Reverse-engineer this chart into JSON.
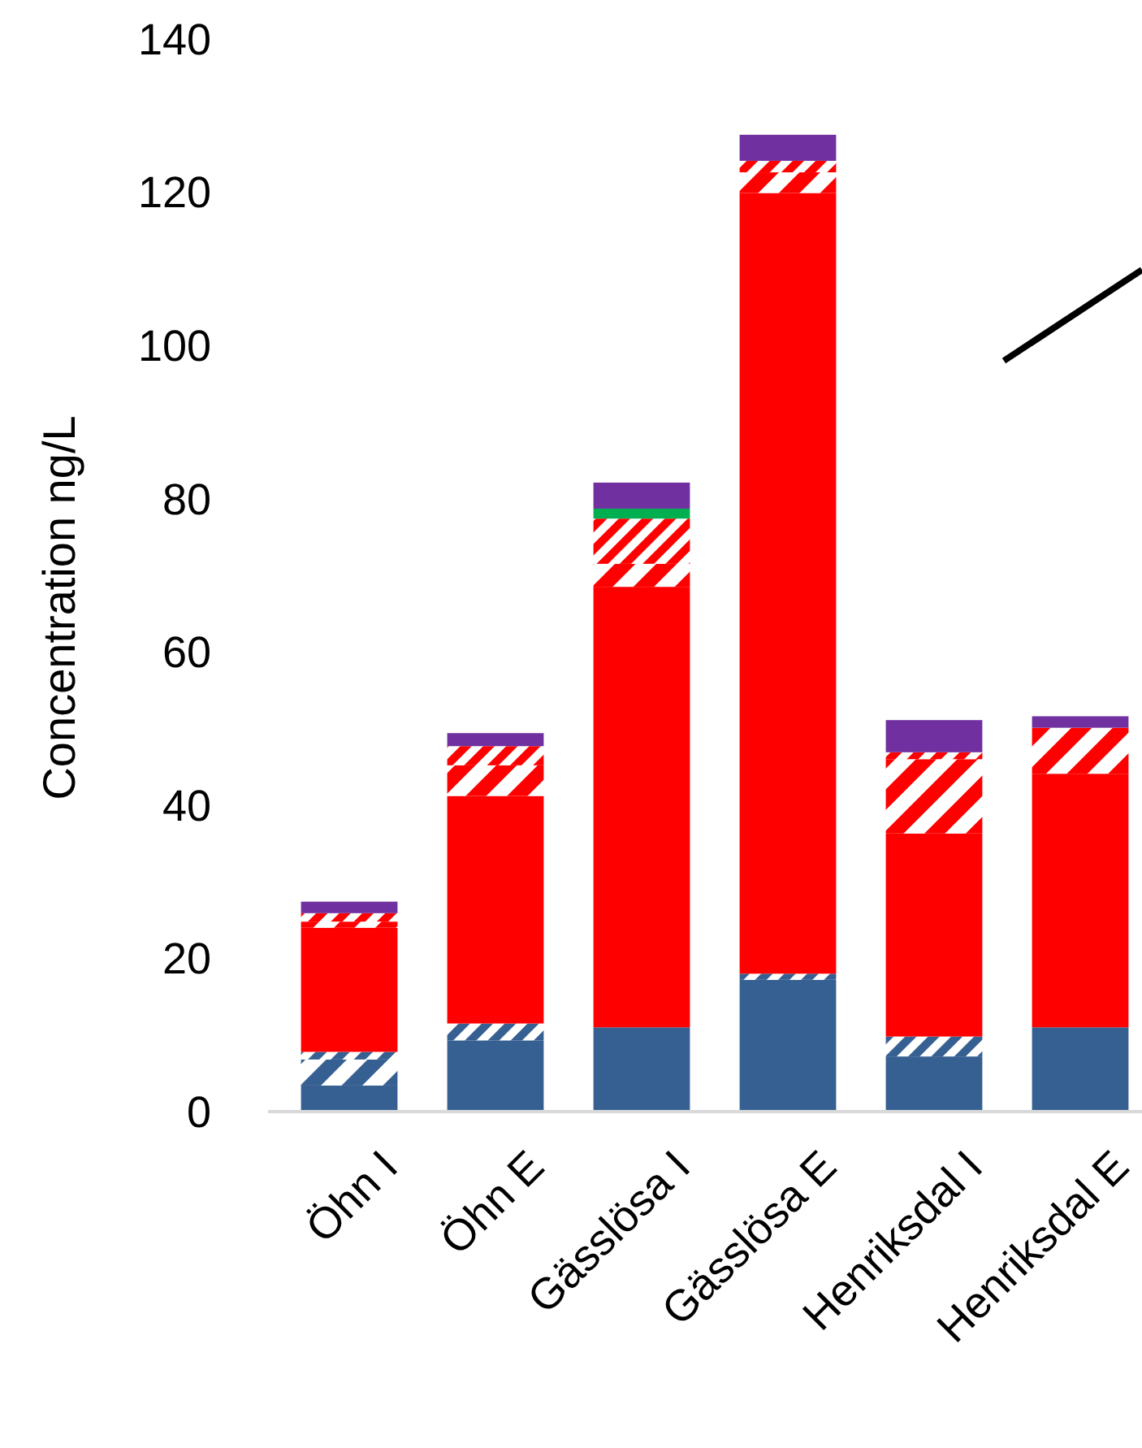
{
  "chart_data": {
    "type": "bar",
    "stacked": true,
    "ylabel": "Concentration ng/L",
    "categories": [
      "Öhn I",
      "Öhn E",
      "Gässlösa I",
      "Gässlösa E",
      "Henriksdal I",
      "Henriksdal E"
    ],
    "ylim": [
      0,
      140
    ],
    "yticks": [
      0,
      20,
      40,
      60,
      80,
      100,
      120,
      140
    ],
    "grid": false,
    "series": [
      {
        "color": "#376092",
        "values": [
          3.4,
          9.3,
          11.0,
          17.2,
          7.2,
          11.0
        ]
      },
      {
        "color": "#376092",
        "values": [
          3.4,
          null,
          null,
          null,
          null,
          null
        ]
      },
      {
        "color": "#376092",
        "values": [
          1.0,
          2.2,
          null,
          0.8,
          2.6,
          null
        ]
      },
      {
        "color": "#ff0000",
        "values": [
          16.2,
          29.7,
          57.5,
          101.9,
          26.5,
          33.1
        ]
      },
      {
        "color": "#ff0000",
        "values": [
          0.8,
          4.0,
          3.0,
          2.7,
          9.7,
          6.0
        ]
      },
      {
        "color": "#ff0000",
        "values": [
          1.1,
          2.5,
          5.9,
          1.5,
          0.9,
          null
        ]
      },
      {
        "color": "#00b050",
        "values": [
          null,
          null,
          1.3,
          null,
          null,
          null
        ]
      },
      {
        "color": "#7030a0",
        "values": [
          1.5,
          1.7,
          3.4,
          3.4,
          4.2,
          1.5
        ]
      }
    ]
  }
}
